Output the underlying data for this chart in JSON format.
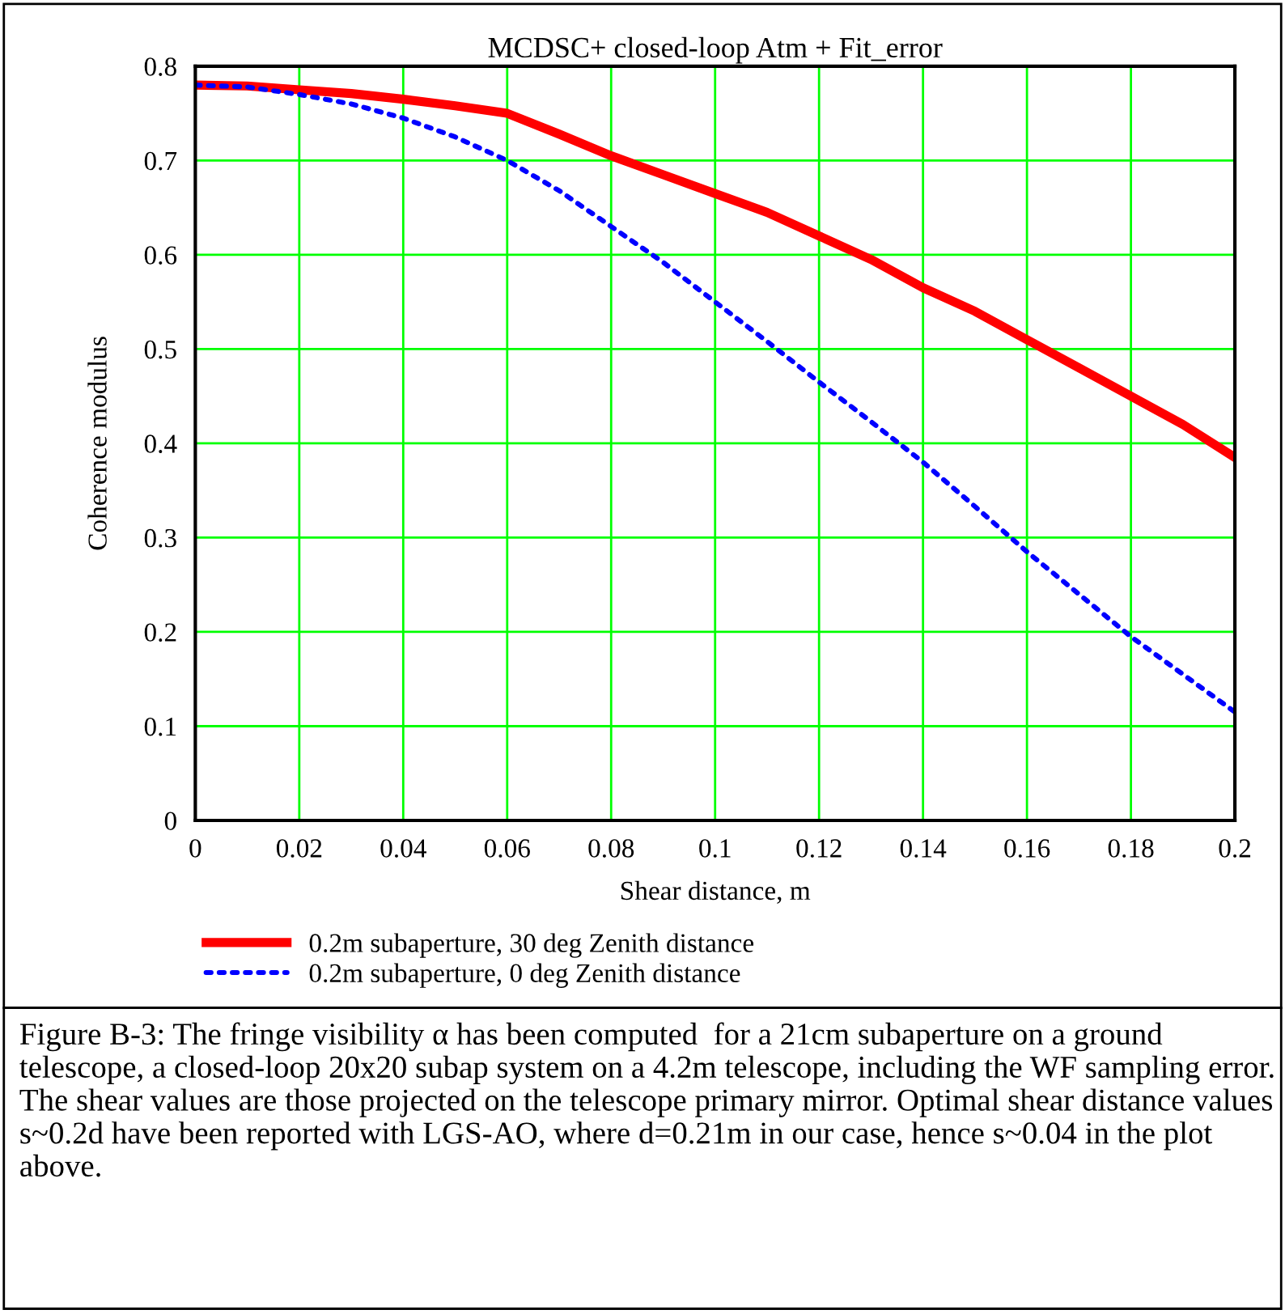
{
  "chart_data": {
    "type": "line",
    "title": "MCDSC+ closed-loop Atm + Fit_error",
    "xlabel": "Shear distance, m",
    "ylabel": "Coherence modulus",
    "x": [
      0,
      0.01,
      0.02,
      0.03,
      0.04,
      0.05,
      0.06,
      0.07,
      0.08,
      0.09,
      0.1,
      0.11,
      0.12,
      0.13,
      0.14,
      0.15,
      0.16,
      0.17,
      0.18,
      0.19,
      0.2
    ],
    "series": [
      {
        "name": "0.2m subaperture, 30 deg Zenith distance",
        "color": "#ff0000",
        "line_style": "solid",
        "values": [
          0.78,
          0.779,
          0.775,
          0.771,
          0.765,
          0.758,
          0.75,
          0.728,
          0.705,
          0.685,
          0.665,
          0.645,
          0.62,
          0.595,
          0.565,
          0.54,
          0.51,
          0.48,
          0.45,
          0.42,
          0.385
        ]
      },
      {
        "name": "0.2m subaperture, 0 deg Zenith distance",
        "color": "#0000ff",
        "line_style": "dotted",
        "values": [
          0.78,
          0.778,
          0.77,
          0.76,
          0.745,
          0.725,
          0.7,
          0.668,
          0.63,
          0.592,
          0.55,
          0.508,
          0.465,
          0.423,
          0.38,
          0.333,
          0.285,
          0.24,
          0.195,
          0.155,
          0.115
        ]
      }
    ],
    "xlim": [
      0,
      0.2
    ],
    "ylim": [
      0,
      0.8
    ],
    "xticks": [
      0,
      0.02,
      0.04,
      0.06,
      0.08,
      0.1,
      0.12,
      0.14,
      0.16,
      0.18,
      0.2
    ],
    "yticks": [
      0,
      0.1,
      0.2,
      0.3,
      0.4,
      0.5,
      0.6,
      0.7,
      0.8
    ],
    "grid": true,
    "legend": "bottom",
    "marker": "none",
    "annotations": [
      "Figure B-3: The fringe visibility α has been computed  for a 21cm subaperture on a ground telescope, a closed-loop 20x20 subap system on a 4.2m telescope, including the WF sampling error. The shear values are those projected on the telescope primary mirror. Optimal shear distance values s~0.2d have been reported with LGS-AO, where d=0.21m in our case, hence s~0.04 in the plot above."
    ]
  }
}
